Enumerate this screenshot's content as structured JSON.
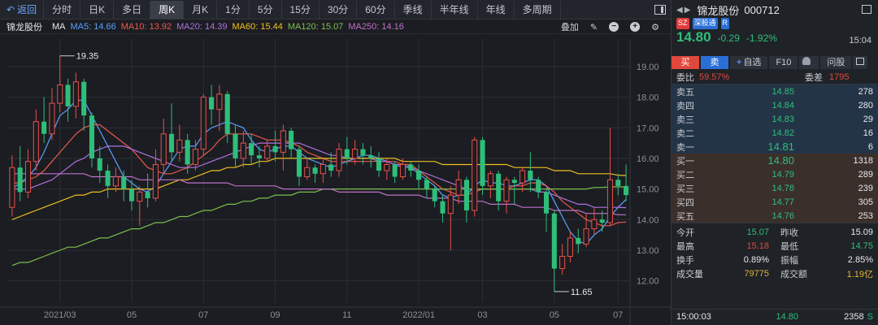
{
  "toolbar": {
    "back": "返回",
    "tabs": [
      "分时",
      "日K",
      "多日",
      "周K",
      "月K",
      "1分",
      "5分",
      "15分",
      "30分",
      "60分",
      "季线",
      "半年线",
      "年线",
      "多周期"
    ],
    "active_tab": "周K"
  },
  "ma": {
    "name": "锦龙股份",
    "label": "MA",
    "items": [
      {
        "text": "MA5: 14.66",
        "color": "#5aa0ff"
      },
      {
        "text": "MA10: 13.92",
        "color": "#e85a4a"
      },
      {
        "text": "MA20: 14.39",
        "color": "#b070e0"
      },
      {
        "text": "MA60: 15.44",
        "color": "#f0c020"
      },
      {
        "text": "MA120: 15.07",
        "color": "#7cc04a"
      },
      {
        "text": "MA250: 14.16",
        "color": "#c070c8"
      }
    ],
    "tools_label": "叠加"
  },
  "chart_data": {
    "type": "candlestick",
    "y_ticks": [
      "19.00",
      "18.00",
      "17.00",
      "16.00",
      "15.00",
      "14.00",
      "13.00",
      "12.00"
    ],
    "ylim": [
      11.3,
      19.9
    ],
    "x_ticks": [
      {
        "label": "2021/03",
        "index": 6
      },
      {
        "label": "05",
        "index": 15
      },
      {
        "label": "07",
        "index": 24
      },
      {
        "label": "09",
        "index": 33
      },
      {
        "label": "11",
        "index": 42
      },
      {
        "label": "2022/01",
        "index": 51
      },
      {
        "label": "03",
        "index": 59
      },
      {
        "label": "05",
        "index": 68
      },
      {
        "label": "07",
        "index": 76
      }
    ],
    "max_marker": {
      "label": "19.35",
      "index": 6,
      "value": 19.35
    },
    "min_marker": {
      "label": "11.65",
      "index": 68,
      "value": 11.65
    },
    "candles": [
      [
        14.4,
        15.7,
        16.1,
        14.1
      ],
      [
        15.7,
        14.9,
        16.4,
        14.6
      ],
      [
        14.9,
        15.9,
        16.3,
        14.7
      ],
      [
        15.9,
        17.2,
        17.6,
        15.6
      ],
      [
        17.2,
        16.8,
        18.0,
        16.5
      ],
      [
        16.8,
        17.8,
        18.3,
        16.6
      ],
      [
        17.8,
        18.4,
        19.35,
        17.5
      ],
      [
        18.4,
        17.7,
        18.6,
        17.2
      ],
      [
        17.7,
        18.5,
        18.8,
        17.3
      ],
      [
        18.5,
        17.4,
        18.6,
        16.9
      ],
      [
        17.4,
        16.0,
        17.5,
        15.7
      ],
      [
        16.0,
        15.6,
        16.4,
        15.2
      ],
      [
        15.6,
        15.1,
        15.8,
        14.7
      ],
      [
        15.1,
        15.4,
        15.7,
        14.9
      ],
      [
        15.4,
        15.0,
        15.6,
        14.6
      ],
      [
        15.0,
        14.6,
        15.3,
        14.3
      ],
      [
        14.6,
        14.9,
        15.1,
        13.8
      ],
      [
        14.9,
        14.7,
        15.5,
        14.4
      ],
      [
        14.7,
        15.8,
        16.3,
        14.6
      ],
      [
        15.8,
        16.8,
        17.3,
        15.5
      ],
      [
        16.8,
        16.2,
        17.8,
        15.9
      ],
      [
        16.2,
        16.6,
        17.1,
        15.9
      ],
      [
        16.6,
        15.8,
        16.8,
        15.5
      ],
      [
        15.8,
        16.3,
        16.6,
        15.6
      ],
      [
        16.3,
        18.0,
        18.1,
        16.1
      ],
      [
        18.0,
        17.6,
        18.4,
        17.1
      ],
      [
        17.6,
        18.1,
        18.4,
        16.9
      ],
      [
        18.1,
        16.8,
        18.2,
        16.5
      ],
      [
        16.8,
        16.0,
        17.1,
        15.7
      ],
      [
        16.0,
        16.5,
        16.9,
        15.7
      ],
      [
        16.5,
        16.1,
        16.8,
        15.8
      ],
      [
        16.1,
        16.0,
        16.4,
        15.7
      ],
      [
        16.0,
        16.4,
        16.6,
        15.9
      ],
      [
        16.4,
        16.2,
        16.9,
        15.9
      ],
      [
        16.2,
        16.9,
        17.1,
        15.6
      ],
      [
        16.9,
        16.3,
        17.0,
        16.0
      ],
      [
        16.3,
        15.4,
        16.4,
        15.1
      ],
      [
        15.4,
        15.7,
        16.0,
        15.3
      ],
      [
        15.7,
        15.5,
        15.8,
        15.2
      ],
      [
        15.5,
        15.8,
        16.0,
        15.2
      ],
      [
        15.8,
        15.6,
        16.2,
        15.4
      ],
      [
        15.6,
        16.3,
        16.5,
        15.4
      ],
      [
        16.3,
        16.0,
        16.7,
        15.8
      ],
      [
        16.0,
        16.3,
        16.6,
        15.8
      ],
      [
        16.3,
        16.1,
        16.5,
        15.8
      ],
      [
        16.1,
        16.0,
        16.4,
        15.7
      ],
      [
        16.0,
        15.6,
        16.2,
        15.4
      ],
      [
        15.6,
        15.8,
        16.0,
        15.3
      ],
      [
        15.8,
        15.4,
        15.9,
        15.2
      ],
      [
        15.4,
        15.8,
        16.0,
        15.3
      ],
      [
        15.8,
        15.6,
        15.9,
        15.4
      ],
      [
        15.6,
        15.3,
        15.8,
        15.0
      ],
      [
        15.3,
        15.0,
        15.4,
        14.7
      ],
      [
        15.0,
        14.6,
        15.1,
        14.4
      ],
      [
        14.6,
        14.2,
        14.8,
        13.9
      ],
      [
        14.2,
        14.8,
        15.1,
        13.0
      ],
      [
        14.8,
        15.3,
        15.6,
        14.5
      ],
      [
        15.3,
        14.3,
        15.4,
        13.9
      ],
      [
        14.3,
        16.6,
        16.7,
        14.1
      ],
      [
        16.6,
        15.1,
        16.7,
        14.8
      ],
      [
        15.1,
        15.5,
        15.6,
        14.7
      ],
      [
        15.5,
        14.6,
        15.6,
        14.3
      ],
      [
        14.6,
        15.3,
        15.4,
        14.2
      ],
      [
        15.3,
        15.2,
        15.4,
        14.5
      ],
      [
        15.2,
        15.6,
        15.7,
        14.9
      ],
      [
        15.6,
        15.3,
        16.2,
        14.9
      ],
      [
        15.3,
        14.9,
        15.4,
        14.7
      ],
      [
        14.9,
        14.2,
        15.0,
        13.6
      ],
      [
        14.2,
        12.4,
        14.3,
        11.65
      ],
      [
        12.4,
        12.8,
        13.2,
        12.2
      ],
      [
        12.8,
        13.4,
        13.6,
        12.6
      ],
      [
        13.4,
        13.2,
        13.7,
        12.9
      ],
      [
        13.2,
        13.7,
        14.2,
        13.1
      ],
      [
        13.7,
        14.0,
        14.4,
        13.5
      ],
      [
        14.0,
        13.9,
        14.3,
        13.6
      ],
      [
        13.9,
        15.3,
        17.0,
        13.8
      ],
      [
        15.3,
        15.1,
        15.5,
        14.8
      ],
      [
        15.1,
        14.8,
        15.8,
        14.6
      ]
    ],
    "ma_lines": [
      {
        "name": "MA5",
        "color": "#5aa0ff",
        "values": [
          15.0,
          15.2,
          15.4,
          15.7,
          16.2,
          16.8,
          17.4,
          17.6,
          17.9,
          17.9,
          17.4,
          16.9,
          16.4,
          15.9,
          15.4,
          15.2,
          15.0,
          14.9,
          15.1,
          15.5,
          15.9,
          16.3,
          16.4,
          16.4,
          16.8,
          17.0,
          17.1,
          17.2,
          17.1,
          17.0,
          16.6,
          16.3,
          16.2,
          16.3,
          16.4,
          16.4,
          16.2,
          16.0,
          15.9,
          15.8,
          15.7,
          15.8,
          15.9,
          16.0,
          16.1,
          16.1,
          16.0,
          15.9,
          15.8,
          15.7,
          15.7,
          15.5,
          15.3,
          15.1,
          14.8,
          14.7,
          14.8,
          14.8,
          15.1,
          15.3,
          15.2,
          15.2,
          15.1,
          15.1,
          15.2,
          15.3,
          15.3,
          15.1,
          14.6,
          14.1,
          13.6,
          13.3,
          13.2,
          13.5,
          13.7,
          14.1,
          14.4,
          14.66
        ]
      },
      {
        "name": "MA10",
        "color": "#e85a4a",
        "values": [
          15.2,
          15.2,
          15.3,
          15.4,
          15.6,
          15.9,
          16.2,
          16.5,
          16.8,
          17.0,
          17.1,
          17.1,
          16.9,
          16.7,
          16.5,
          16.3,
          16.0,
          15.7,
          15.6,
          15.5,
          15.5,
          15.6,
          15.7,
          15.9,
          16.1,
          16.3,
          16.6,
          16.8,
          16.8,
          16.8,
          16.8,
          16.7,
          16.6,
          16.6,
          16.6,
          16.5,
          16.4,
          16.2,
          16.1,
          16.0,
          15.9,
          15.9,
          15.9,
          15.9,
          15.9,
          15.9,
          15.9,
          15.9,
          15.9,
          15.8,
          15.8,
          15.6,
          15.4,
          15.2,
          15.0,
          14.9,
          14.8,
          14.8,
          14.9,
          15.0,
          15.0,
          15.0,
          15.0,
          15.1,
          15.1,
          15.2,
          15.2,
          15.1,
          14.9,
          14.6,
          14.4,
          14.2,
          14.0,
          13.9,
          13.8,
          13.8,
          13.9,
          13.92
        ]
      },
      {
        "name": "MA20",
        "color": "#b070e0",
        "values": [
          15.0,
          15.0,
          15.0,
          15.1,
          15.2,
          15.3,
          15.5,
          15.7,
          15.9,
          16.0,
          16.2,
          16.3,
          16.4,
          16.4,
          16.4,
          16.3,
          16.2,
          16.1,
          16.0,
          15.9,
          15.8,
          15.7,
          15.7,
          15.7,
          15.8,
          15.9,
          16.0,
          16.1,
          16.2,
          16.3,
          16.4,
          16.5,
          16.5,
          16.5,
          16.5,
          16.5,
          16.5,
          16.4,
          16.3,
          16.2,
          16.1,
          16.1,
          16.0,
          16.0,
          16.0,
          16.0,
          15.9,
          15.9,
          15.8,
          15.8,
          15.7,
          15.6,
          15.5,
          15.4,
          15.3,
          15.2,
          15.1,
          15.0,
          15.0,
          15.0,
          15.0,
          15.0,
          15.0,
          15.0,
          15.0,
          15.0,
          14.9,
          14.9,
          14.8,
          14.7,
          14.6,
          14.5,
          14.5,
          14.4,
          14.4,
          14.4,
          14.4,
          14.39
        ]
      },
      {
        "name": "MA60",
        "color": "#f0c020",
        "values": [
          14.0,
          14.1,
          14.2,
          14.3,
          14.4,
          14.5,
          14.6,
          14.7,
          14.8,
          14.8,
          14.9,
          14.9,
          15.0,
          15.0,
          15.0,
          15.0,
          15.0,
          15.0,
          15.0,
          15.1,
          15.2,
          15.3,
          15.3,
          15.4,
          15.5,
          15.6,
          15.6,
          15.7,
          15.7,
          15.8,
          15.8,
          15.9,
          15.9,
          16.0,
          16.0,
          16.0,
          16.0,
          16.0,
          16.0,
          16.0,
          16.0,
          16.0,
          16.0,
          16.0,
          16.0,
          16.0,
          16.0,
          16.0,
          16.0,
          15.9,
          15.9,
          15.9,
          15.9,
          15.9,
          15.8,
          15.8,
          15.8,
          15.8,
          15.8,
          15.8,
          15.8,
          15.8,
          15.8,
          15.7,
          15.7,
          15.7,
          15.7,
          15.7,
          15.6,
          15.6,
          15.6,
          15.5,
          15.5,
          15.5,
          15.5,
          15.5,
          15.45,
          15.44
        ]
      },
      {
        "name": "MA120",
        "color": "#7cc04a",
        "values": [
          12.5,
          12.6,
          12.6,
          12.7,
          12.8,
          12.9,
          13.0,
          13.1,
          13.1,
          13.2,
          13.3,
          13.4,
          13.4,
          13.5,
          13.6,
          13.7,
          13.7,
          13.8,
          13.9,
          13.9,
          14.0,
          14.1,
          14.1,
          14.2,
          14.3,
          14.3,
          14.4,
          14.5,
          14.5,
          14.6,
          14.6,
          14.7,
          14.7,
          14.8,
          14.8,
          14.8,
          14.9,
          14.9,
          14.9,
          15.0,
          15.0,
          15.0,
          15.0,
          15.0,
          15.0,
          15.0,
          15.0,
          15.0,
          15.0,
          15.0,
          15.0,
          15.0,
          15.0,
          15.0,
          15.0,
          15.0,
          15.0,
          15.0,
          15.0,
          15.0,
          15.0,
          15.0,
          15.0,
          15.0,
          15.0,
          15.0,
          15.0,
          15.0,
          15.0,
          15.0,
          15.0,
          15.0,
          15.0,
          15.05,
          15.05,
          15.07,
          15.07,
          15.07
        ]
      },
      {
        "name": "MA250",
        "color": "#c070c8",
        "values": [
          15.5,
          15.5,
          15.5,
          15.5,
          15.5,
          15.5,
          15.5,
          15.5,
          15.5,
          15.5,
          15.4,
          15.4,
          15.4,
          15.4,
          15.4,
          15.4,
          15.3,
          15.3,
          15.3,
          15.3,
          15.3,
          15.3,
          15.2,
          15.2,
          15.2,
          15.2,
          15.2,
          15.2,
          15.1,
          15.1,
          15.1,
          15.1,
          15.1,
          15.1,
          15.0,
          15.0,
          15.0,
          15.0,
          15.0,
          15.0,
          15.0,
          14.9,
          14.9,
          14.9,
          14.9,
          14.9,
          14.9,
          14.8,
          14.8,
          14.8,
          14.8,
          14.8,
          14.7,
          14.7,
          14.7,
          14.7,
          14.6,
          14.6,
          14.6,
          14.6,
          14.5,
          14.5,
          14.5,
          14.5,
          14.4,
          14.4,
          14.4,
          14.4,
          14.3,
          14.3,
          14.3,
          14.3,
          14.2,
          14.2,
          14.2,
          14.2,
          14.16,
          14.16
        ]
      }
    ]
  },
  "panel": {
    "name": "锦龙股份",
    "code": "000712",
    "tags": [
      "SZ",
      "深股通",
      "R"
    ],
    "last": "14.80",
    "change": "-0.29",
    "pct": "-1.92%",
    "time": "15:04",
    "actions": {
      "buy": "买",
      "sell": "卖",
      "watch": "自选",
      "f10": "F10",
      "ask": "问股"
    },
    "weibi_label": "委比",
    "weibi_value": "59.57%",
    "weicha_label": "委差",
    "weicha_value": "1795",
    "asks": [
      {
        "label": "卖五",
        "price": "14.85",
        "vol": "278"
      },
      {
        "label": "卖四",
        "price": "14.84",
        "vol": "280"
      },
      {
        "label": "卖三",
        "price": "14.83",
        "vol": "29"
      },
      {
        "label": "卖二",
        "price": "14.82",
        "vol": "16"
      },
      {
        "label": "卖一",
        "price": "14.81",
        "vol": "6"
      }
    ],
    "bids": [
      {
        "label": "买一",
        "price": "14.80",
        "vol": "1318"
      },
      {
        "label": "买二",
        "price": "14.79",
        "vol": "289"
      },
      {
        "label": "买三",
        "price": "14.78",
        "vol": "239"
      },
      {
        "label": "买四",
        "price": "14.77",
        "vol": "305"
      },
      {
        "label": "买五",
        "price": "14.76",
        "vol": "253"
      }
    ],
    "stats": [
      {
        "k1": "今开",
        "v1": "15.07",
        "c1": "c-green",
        "k2": "昨收",
        "v2": "15.09",
        "c2": "c-white"
      },
      {
        "k1": "最高",
        "v1": "15.18",
        "c1": "c-red",
        "k2": "最低",
        "v2": "14.75",
        "c2": "c-green"
      },
      {
        "k1": "换手",
        "v1": "0.89%",
        "c1": "c-white",
        "k2": "振幅",
        "v2": "2.85%",
        "c2": "c-white"
      },
      {
        "k1": "成交量",
        "v1": "79775",
        "c1": "c-yellow",
        "k2": "成交额",
        "v2": "1.19亿",
        "c2": "c-yellow"
      }
    ],
    "trade": {
      "time": "15:00:03",
      "price": "14.80",
      "vol": "2358",
      "side": "S"
    }
  }
}
